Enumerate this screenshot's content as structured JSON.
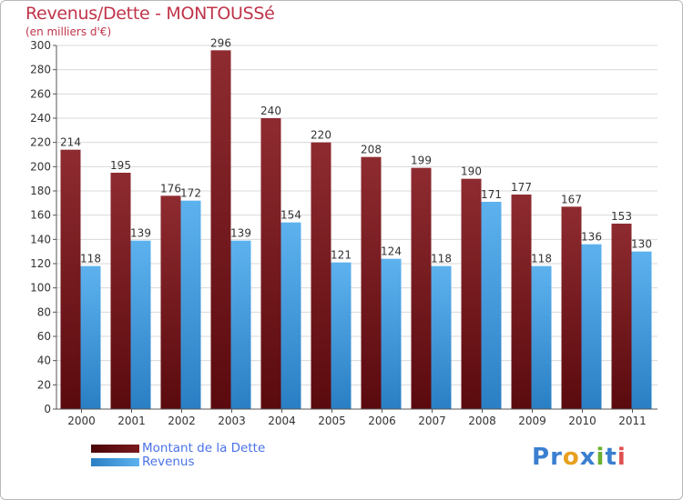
{
  "chart_data": {
    "type": "bar",
    "title": "Revenus/Dette - MONTOUSSé",
    "subtitle": "(en milliers d'€)",
    "categories": [
      "2000",
      "2001",
      "2002",
      "2003",
      "2004",
      "2005",
      "2006",
      "2007",
      "2008",
      "2009",
      "2010",
      "2011"
    ],
    "series": [
      {
        "name": "Montant de la Dette",
        "color": "#7a1a1e",
        "values": [
          214,
          195,
          176,
          296,
          240,
          220,
          208,
          199,
          190,
          177,
          167,
          153
        ]
      },
      {
        "name": "Revenus",
        "color": "#4fa3e4",
        "values": [
          118,
          139,
          172,
          139,
          154,
          121,
          124,
          118,
          171,
          118,
          136,
          130
        ]
      }
    ],
    "ylim": [
      0,
      300
    ],
    "yticks": [
      0,
      20,
      40,
      60,
      80,
      100,
      120,
      140,
      160,
      180,
      200,
      220,
      240,
      260,
      280,
      300
    ],
    "grid": true,
    "legend": "bottom-left"
  },
  "logo": {
    "letters": [
      "P",
      "r",
      "o",
      "x",
      "i",
      "t",
      "i"
    ],
    "colors": [
      "#3a7fd0",
      "#3a7fd0",
      "#e8a020",
      "#3a7fd0",
      "#6ab030",
      "#3a7fd0",
      "#e05050"
    ]
  }
}
